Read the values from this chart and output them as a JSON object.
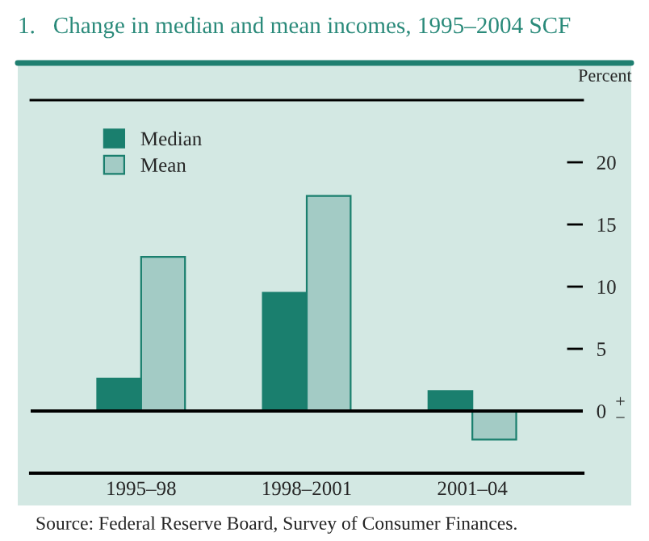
{
  "chart_data": {
    "type": "bar",
    "title": "1.   Change in median and mean incomes, 1995–2004 SCF",
    "ylabel": "Percent",
    "categories": [
      "1995–98",
      "1998–2001",
      "2001–04"
    ],
    "series": [
      {
        "name": "Median",
        "color": "#1a7f6e",
        "values": [
          2.6,
          9.5,
          1.6
        ]
      },
      {
        "name": "Mean",
        "color": "#a3cbc5",
        "values": [
          12.4,
          17.3,
          -2.3
        ]
      }
    ],
    "ylim": [
      -5,
      25
    ],
    "yticks": [
      0,
      5,
      10,
      15,
      20
    ],
    "ref_lines": [
      {
        "axis": "y",
        "value": 0,
        "color": "#000000"
      }
    ],
    "annotations": [
      "+",
      "−",
      "Source: Federal Reserve Board, Survey of Consumer Finances."
    ],
    "grid": false,
    "legend": "top left"
  }
}
